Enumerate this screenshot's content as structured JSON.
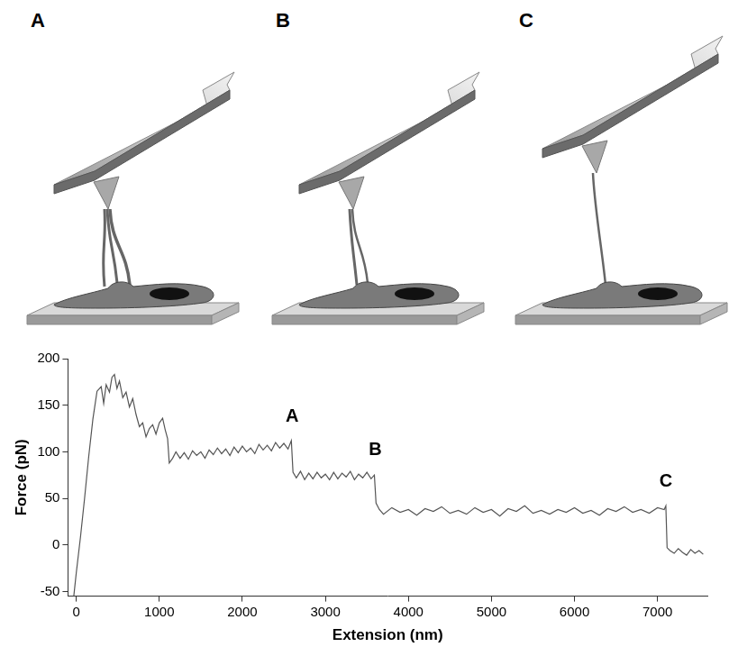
{
  "panels": [
    {
      "label": "A"
    },
    {
      "label": "B"
    },
    {
      "label": "C"
    }
  ],
  "chart_data": {
    "type": "line",
    "x_label": "Extension (nm)",
    "y_label": "Force (pN)",
    "xlim": [
      -100,
      7600
    ],
    "xticks": [
      0,
      1000,
      2000,
      3000,
      4000,
      5000,
      6000,
      7000
    ],
    "ylim": [
      -55,
      200
    ],
    "yticks": [
      -50,
      0,
      50,
      100,
      150,
      200
    ],
    "grid": false,
    "color": "#555555",
    "annotations": [
      {
        "text": "A",
        "x": 2600,
        "y": 128
      },
      {
        "text": "B",
        "x": 3600,
        "y": 92
      },
      {
        "text": "C",
        "x": 7100,
        "y": 58
      }
    ],
    "x": [
      -30,
      0,
      50,
      100,
      150,
      200,
      250,
      300,
      330,
      360,
      400,
      430,
      460,
      490,
      520,
      560,
      600,
      640,
      680,
      720,
      760,
      800,
      840,
      880,
      920,
      960,
      1000,
      1040,
      1070,
      1100,
      1120,
      1160,
      1200,
      1250,
      1300,
      1350,
      1400,
      1450,
      1500,
      1550,
      1600,
      1650,
      1700,
      1750,
      1800,
      1850,
      1900,
      1950,
      2000,
      2050,
      2100,
      2150,
      2200,
      2250,
      2300,
      2350,
      2400,
      2450,
      2500,
      2550,
      2590,
      2610,
      2650,
      2700,
      2750,
      2800,
      2850,
      2900,
      2950,
      3000,
      3050,
      3100,
      3150,
      3200,
      3250,
      3300,
      3350,
      3400,
      3450,
      3500,
      3550,
      3590,
      3610,
      3650,
      3700,
      3800,
      3900,
      4000,
      4100,
      4200,
      4300,
      4400,
      4500,
      4600,
      4700,
      4800,
      4900,
      5000,
      5100,
      5200,
      5300,
      5400,
      5500,
      5600,
      5700,
      5800,
      5900,
      6000,
      6100,
      6200,
      6300,
      6400,
      6500,
      6600,
      6700,
      6800,
      6900,
      7000,
      7080,
      7100,
      7115,
      7150,
      7200,
      7250,
      7300,
      7350,
      7400,
      7450,
      7500,
      7550
    ],
    "values": [
      -55,
      -30,
      8,
      50,
      95,
      135,
      165,
      170,
      152,
      172,
      164,
      180,
      183,
      168,
      176,
      158,
      164,
      148,
      157,
      140,
      127,
      131,
      116,
      125,
      129,
      119,
      131,
      136,
      124,
      114,
      88,
      93,
      100,
      93,
      99,
      92,
      101,
      96,
      100,
      93,
      102,
      97,
      104,
      98,
      103,
      96,
      105,
      99,
      106,
      100,
      104,
      98,
      108,
      102,
      107,
      101,
      110,
      104,
      109,
      103,
      112,
      78,
      72,
      79,
      70,
      77,
      71,
      78,
      72,
      76,
      70,
      78,
      71,
      77,
      73,
      79,
      70,
      76,
      72,
      78,
      71,
      75,
      45,
      38,
      33,
      40,
      35,
      38,
      32,
      39,
      36,
      41,
      34,
      37,
      33,
      40,
      35,
      38,
      31,
      39,
      36,
      42,
      34,
      37,
      33,
      38,
      35,
      40,
      34,
      37,
      32,
      39,
      36,
      41,
      35,
      38,
      34,
      40,
      38,
      42,
      -3,
      -6,
      -9,
      -4,
      -8,
      -11,
      -5,
      -9,
      -6,
      -10
    ]
  }
}
